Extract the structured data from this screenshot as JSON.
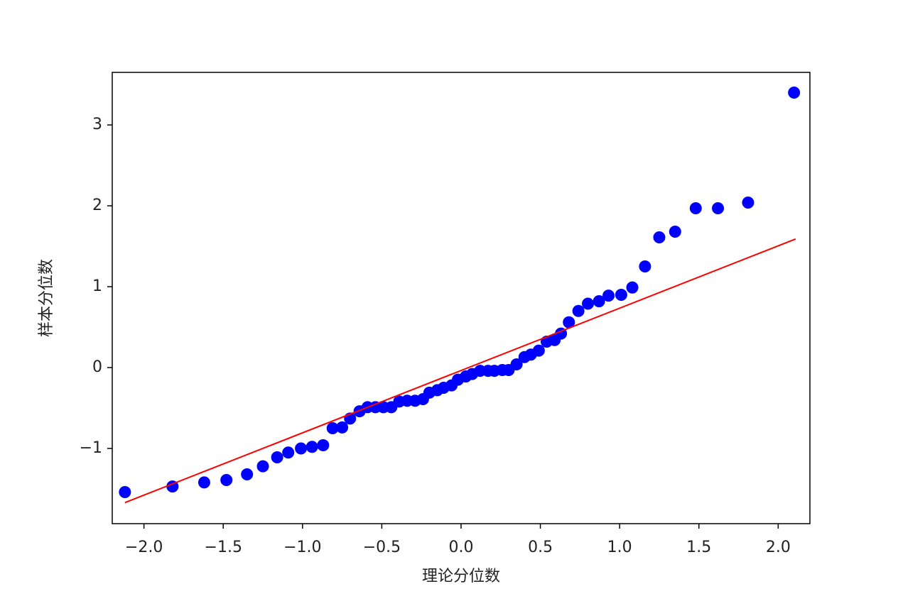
{
  "chart_data": {
    "type": "scatter",
    "xlabel": "理论分位数",
    "ylabel": "样本分位数",
    "xlim": [
      -2.2,
      2.2
    ],
    "ylim": [
      -1.93,
      3.65
    ],
    "xticks": [
      {
        "value": -2,
        "label": "−2.0"
      },
      {
        "value": -1.5,
        "label": "−1.5"
      },
      {
        "value": -1,
        "label": "−1.0"
      },
      {
        "value": -0.5,
        "label": "−0.5"
      },
      {
        "value": 0,
        "label": "0.0"
      },
      {
        "value": 0.5,
        "label": "0.5"
      },
      {
        "value": 1,
        "label": "1.0"
      },
      {
        "value": 1.5,
        "label": "1.5"
      },
      {
        "value": 2,
        "label": "2.0"
      }
    ],
    "yticks": [
      {
        "value": -1,
        "label": "−1"
      },
      0,
      1,
      2,
      3
    ],
    "x": [
      -2.12,
      -1.82,
      -1.62,
      -1.48,
      -1.35,
      -1.25,
      -1.16,
      -1.09,
      -1.01,
      -0.94,
      -0.87,
      -0.81,
      -0.75,
      -0.7,
      -0.64,
      -0.59,
      -0.54,
      -0.49,
      -0.44,
      -0.39,
      -0.34,
      -0.29,
      -0.24,
      -0.2,
      -0.15,
      -0.11,
      -0.06,
      -0.02,
      0.03,
      0.07,
      0.12,
      0.17,
      0.21,
      0.26,
      0.3,
      0.35,
      0.4,
      0.44,
      0.49,
      0.54,
      0.59,
      0.63,
      0.68,
      0.74,
      0.8,
      0.87,
      0.93,
      1.01,
      1.08,
      1.16,
      1.25,
      1.35,
      1.48,
      1.62,
      1.81,
      2.1
    ],
    "series": [
      {
        "color": "#0000ff",
        "values": [
          -1.54,
          -1.47,
          -1.42,
          -1.39,
          -1.32,
          -1.22,
          -1.11,
          -1.05,
          -1.0,
          -0.98,
          -0.96,
          -0.75,
          -0.74,
          -0.63,
          -0.54,
          -0.49,
          -0.49,
          -0.49,
          -0.49,
          -0.42,
          -0.41,
          -0.41,
          -0.39,
          -0.31,
          -0.28,
          -0.25,
          -0.22,
          -0.15,
          -0.11,
          -0.08,
          -0.04,
          -0.04,
          -0.04,
          -0.03,
          -0.03,
          0.04,
          0.13,
          0.16,
          0.21,
          0.32,
          0.34,
          0.42,
          0.56,
          0.7,
          0.79,
          0.82,
          0.89,
          0.9,
          0.99,
          1.25,
          1.61,
          1.68,
          1.97,
          1.97,
          2.04,
          3.4
        ]
      }
    ],
    "fit_line": {
      "color": "#ff0000",
      "x": [
        -2.12,
        2.11
      ],
      "y": [
        -1.67,
        1.59
      ]
    }
  }
}
